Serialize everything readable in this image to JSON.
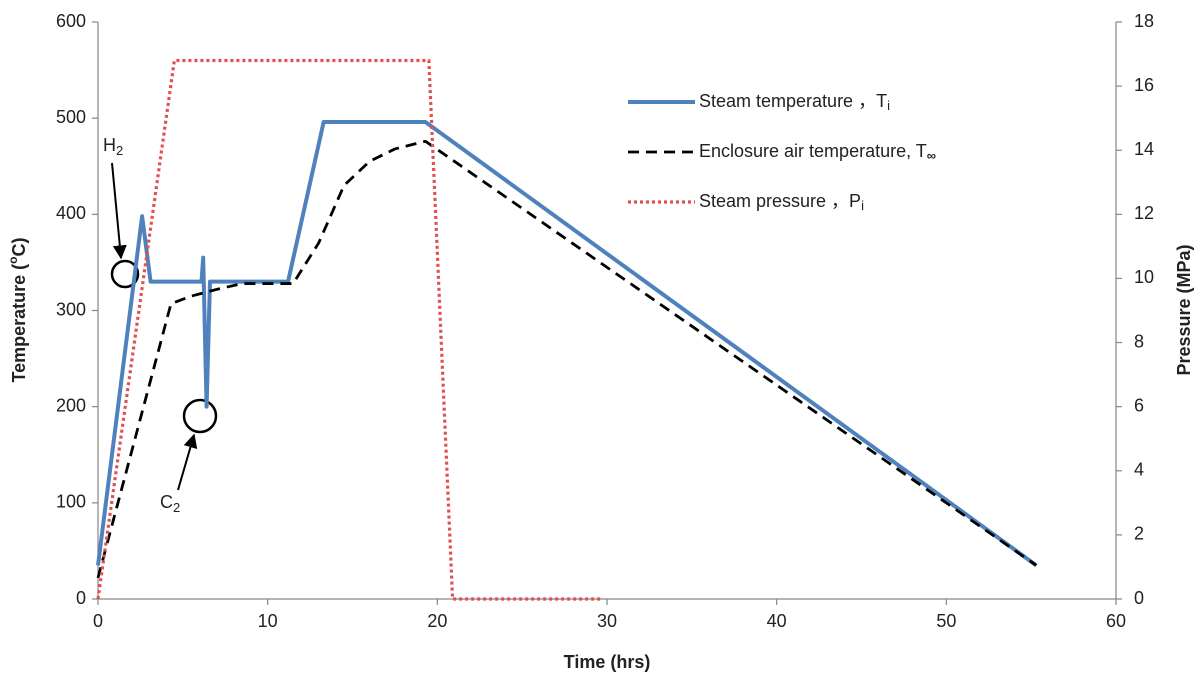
{
  "chart_data": {
    "type": "line",
    "xlabel": "Time (hrs)",
    "ylabel": [
      "Temperature (",
      "o",
      "C)"
    ],
    "y2label": "Pressure (MPa)",
    "xlim": [
      0,
      60
    ],
    "xticks": [
      0,
      10,
      20,
      30,
      40,
      50,
      60
    ],
    "ylim": [
      0,
      600
    ],
    "yticks": [
      0,
      100,
      200,
      300,
      400,
      500,
      600
    ],
    "y2lim": [
      0,
      18
    ],
    "y2ticks": [
      0,
      2,
      4,
      6,
      8,
      10,
      12,
      14,
      16,
      18
    ],
    "legend": "upper right",
    "series": [
      {
        "name": "Steam temperature ，T",
        "subscript": "i",
        "color": "#4f81bd",
        "style": "solid",
        "x": [
          0,
          2.6,
          3.1,
          6.1,
          6.2,
          6.4,
          6.6,
          11.2,
          13.3,
          19.3,
          55.3
        ],
        "values": [
          35,
          398,
          330,
          330,
          355,
          200,
          330,
          330,
          496,
          496,
          35
        ]
      },
      {
        "name": "Enclosure air temperature,  T",
        "subscript": "∞",
        "color": "#000000",
        "style": "dashed",
        "x": [
          0,
          4.3,
          5.5,
          7,
          8.5,
          11.5,
          13,
          14.5,
          16,
          17.5,
          19.3,
          55.3
        ],
        "values": [
          22,
          307,
          315,
          322,
          328,
          328,
          370,
          430,
          455,
          468,
          476,
          35
        ]
      },
      {
        "name": "Steam pressure ，P",
        "subscript": "i",
        "color": "#e05050",
        "style": "dotted",
        "axis": "y2",
        "x": [
          0,
          4.5,
          19.5,
          20.9,
          29.7
        ],
        "values": [
          0,
          16.8,
          16.8,
          0,
          0
        ]
      }
    ],
    "annotations": [
      {
        "text": "H",
        "subscript": "2"
      },
      {
        "text": "C",
        "subscript": "2"
      }
    ]
  }
}
